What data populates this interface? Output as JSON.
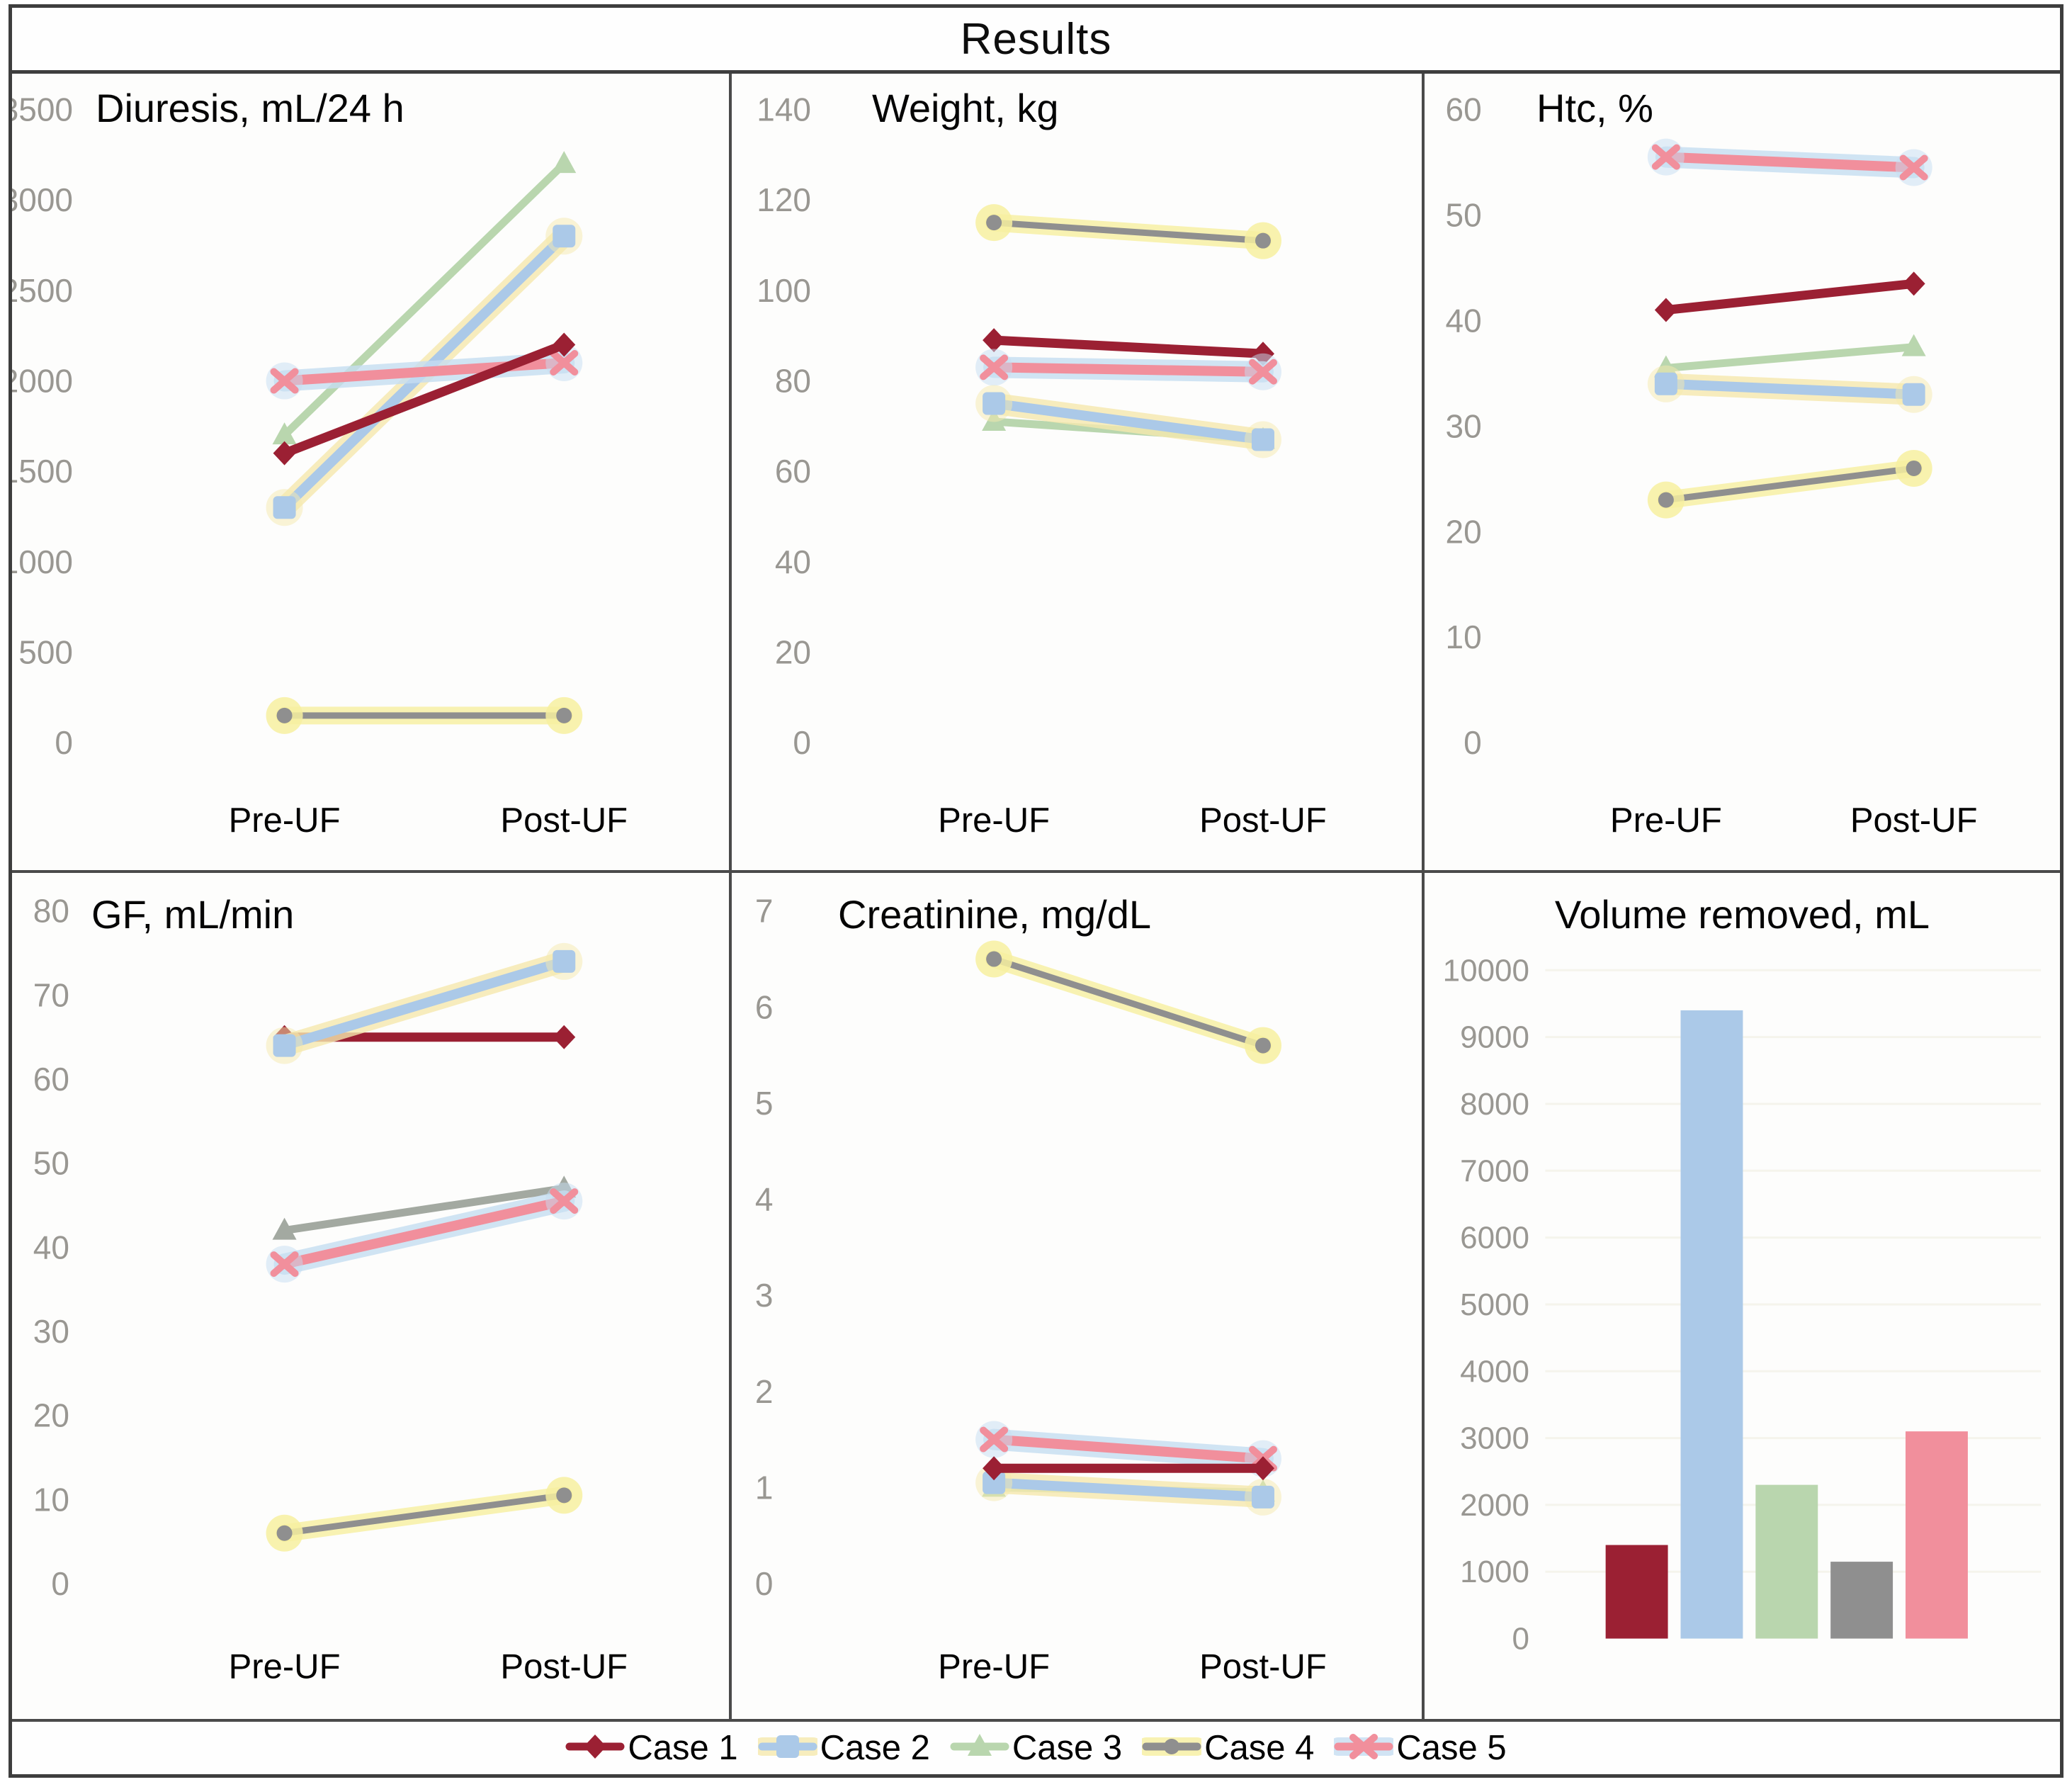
{
  "header": {
    "title": "Results"
  },
  "categories": [
    "Pre-UF",
    "Post-UF"
  ],
  "cases": [
    {
      "id": "case1",
      "label": "Case 1",
      "color": "#9b2033",
      "marker": "diamond"
    },
    {
      "id": "case2",
      "label": "Case 2",
      "color": "#abc9e8",
      "marker": "square",
      "glow": "#f6e9ae"
    },
    {
      "id": "case3",
      "label": "Case 3",
      "color": "#b9d6ae",
      "marker": "triangle"
    },
    {
      "id": "case4",
      "label": "Case 4",
      "color": "#8f8f8f",
      "marker": "circle",
      "glow": "#f7f0a0"
    },
    {
      "id": "case5",
      "label": "Case 5",
      "color": "#f18f9c",
      "marker": "x",
      "glow": "#c6def2"
    }
  ],
  "chart_data": [
    {
      "type": "line",
      "title": "Diuresis, mL/24 h",
      "ylim": [
        0,
        3500
      ],
      "yticks": [
        3500,
        3000,
        2500,
        2000,
        1500,
        1000,
        500,
        0
      ],
      "categories": [
        "Pre-UF",
        "Post-UF"
      ],
      "series": [
        {
          "name": "Case 1",
          "case": "case1",
          "values": [
            1600,
            2200
          ]
        },
        {
          "name": "Case 2",
          "case": "case2",
          "values": [
            1300,
            2800
          ]
        },
        {
          "name": "Case 3",
          "case": "case3",
          "values": [
            1700,
            3200
          ]
        },
        {
          "name": "Case 4",
          "case": "case4",
          "values": [
            150,
            150
          ]
        },
        {
          "name": "Case 5",
          "case": "case5",
          "values": [
            2000,
            2100
          ]
        }
      ]
    },
    {
      "type": "line",
      "title": "Weight, kg",
      "ylim": [
        0,
        140
      ],
      "yticks": [
        140,
        120,
        100,
        80,
        60,
        40,
        20,
        0
      ],
      "categories": [
        "Pre-UF",
        "Post-UF"
      ],
      "series": [
        {
          "name": "Case 1",
          "case": "case1",
          "values": [
            89,
            86
          ]
        },
        {
          "name": "Case 2",
          "case": "case2",
          "values": [
            75,
            67
          ]
        },
        {
          "name": "Case 3",
          "case": "case3",
          "values": [
            71,
            67
          ]
        },
        {
          "name": "Case 4",
          "case": "case4",
          "values": [
            115,
            111
          ]
        },
        {
          "name": "Case 5",
          "case": "case5",
          "values": [
            83,
            82
          ]
        }
      ]
    },
    {
      "type": "line",
      "title": "Htc, %",
      "ylim": [
        0,
        60
      ],
      "yticks": [
        60,
        50,
        40,
        30,
        20,
        10,
        0
      ],
      "categories": [
        "Pre-UF",
        "Post-UF"
      ],
      "series": [
        {
          "name": "Case 1",
          "case": "case1",
          "values": [
            41,
            43.5
          ]
        },
        {
          "name": "Case 2",
          "case": "case2",
          "values": [
            34,
            33
          ]
        },
        {
          "name": "Case 3",
          "case": "case3",
          "values": [
            35.5,
            37.5
          ]
        },
        {
          "name": "Case 4",
          "case": "case4",
          "values": [
            23,
            26
          ]
        },
        {
          "name": "Case 5",
          "case": "case5",
          "values": [
            55.5,
            54.5
          ]
        }
      ]
    },
    {
      "type": "line",
      "title": "GF, mL/min",
      "ylim": [
        0,
        80
      ],
      "yticks": [
        80,
        70,
        60,
        50,
        40,
        30,
        20,
        10,
        0
      ],
      "categories": [
        "Pre-UF",
        "Post-UF"
      ],
      "color_overrides": {
        "case3": "#a3a9a1"
      },
      "series": [
        {
          "name": "Case 1",
          "case": "case1",
          "values": [
            65,
            65
          ]
        },
        {
          "name": "Case 2",
          "case": "case2",
          "values": [
            64,
            74
          ]
        },
        {
          "name": "Case 3",
          "case": "case3",
          "values": [
            42,
            47
          ]
        },
        {
          "name": "Case 4",
          "case": "case4",
          "values": [
            6,
            10.5
          ]
        },
        {
          "name": "Case 5",
          "case": "case5",
          "values": [
            38,
            45.5
          ]
        }
      ]
    },
    {
      "type": "line",
      "title": "Creatinine, mg/dL",
      "ylim": [
        0,
        7
      ],
      "yticks": [
        7,
        6,
        5,
        4,
        3,
        2,
        1,
        0
      ],
      "categories": [
        "Pre-UF",
        "Post-UF"
      ],
      "series": [
        {
          "name": "Case 1",
          "case": "case1",
          "values": [
            1.2,
            1.2
          ]
        },
        {
          "name": "Case 2",
          "case": "case2",
          "values": [
            1.05,
            0.9
          ]
        },
        {
          "name": "Case 3",
          "case": "case3",
          "values": [
            1.0,
            0.95
          ]
        },
        {
          "name": "Case 4",
          "case": "case4",
          "values": [
            6.5,
            5.6
          ]
        },
        {
          "name": "Case 5",
          "case": "case5",
          "values": [
            1.5,
            1.3
          ]
        }
      ]
    },
    {
      "type": "bar",
      "title": "Volume removed, mL",
      "ylim": [
        0,
        10000
      ],
      "yticks": [
        10000,
        9000,
        8000,
        7000,
        6000,
        5000,
        4000,
        3000,
        2000,
        1000,
        0
      ],
      "categories": [
        "Case 1",
        "Case 2",
        "Case 3",
        "Case 4",
        "Case 5"
      ],
      "values": [
        1400,
        9400,
        2300,
        1150,
        3100
      ]
    }
  ]
}
